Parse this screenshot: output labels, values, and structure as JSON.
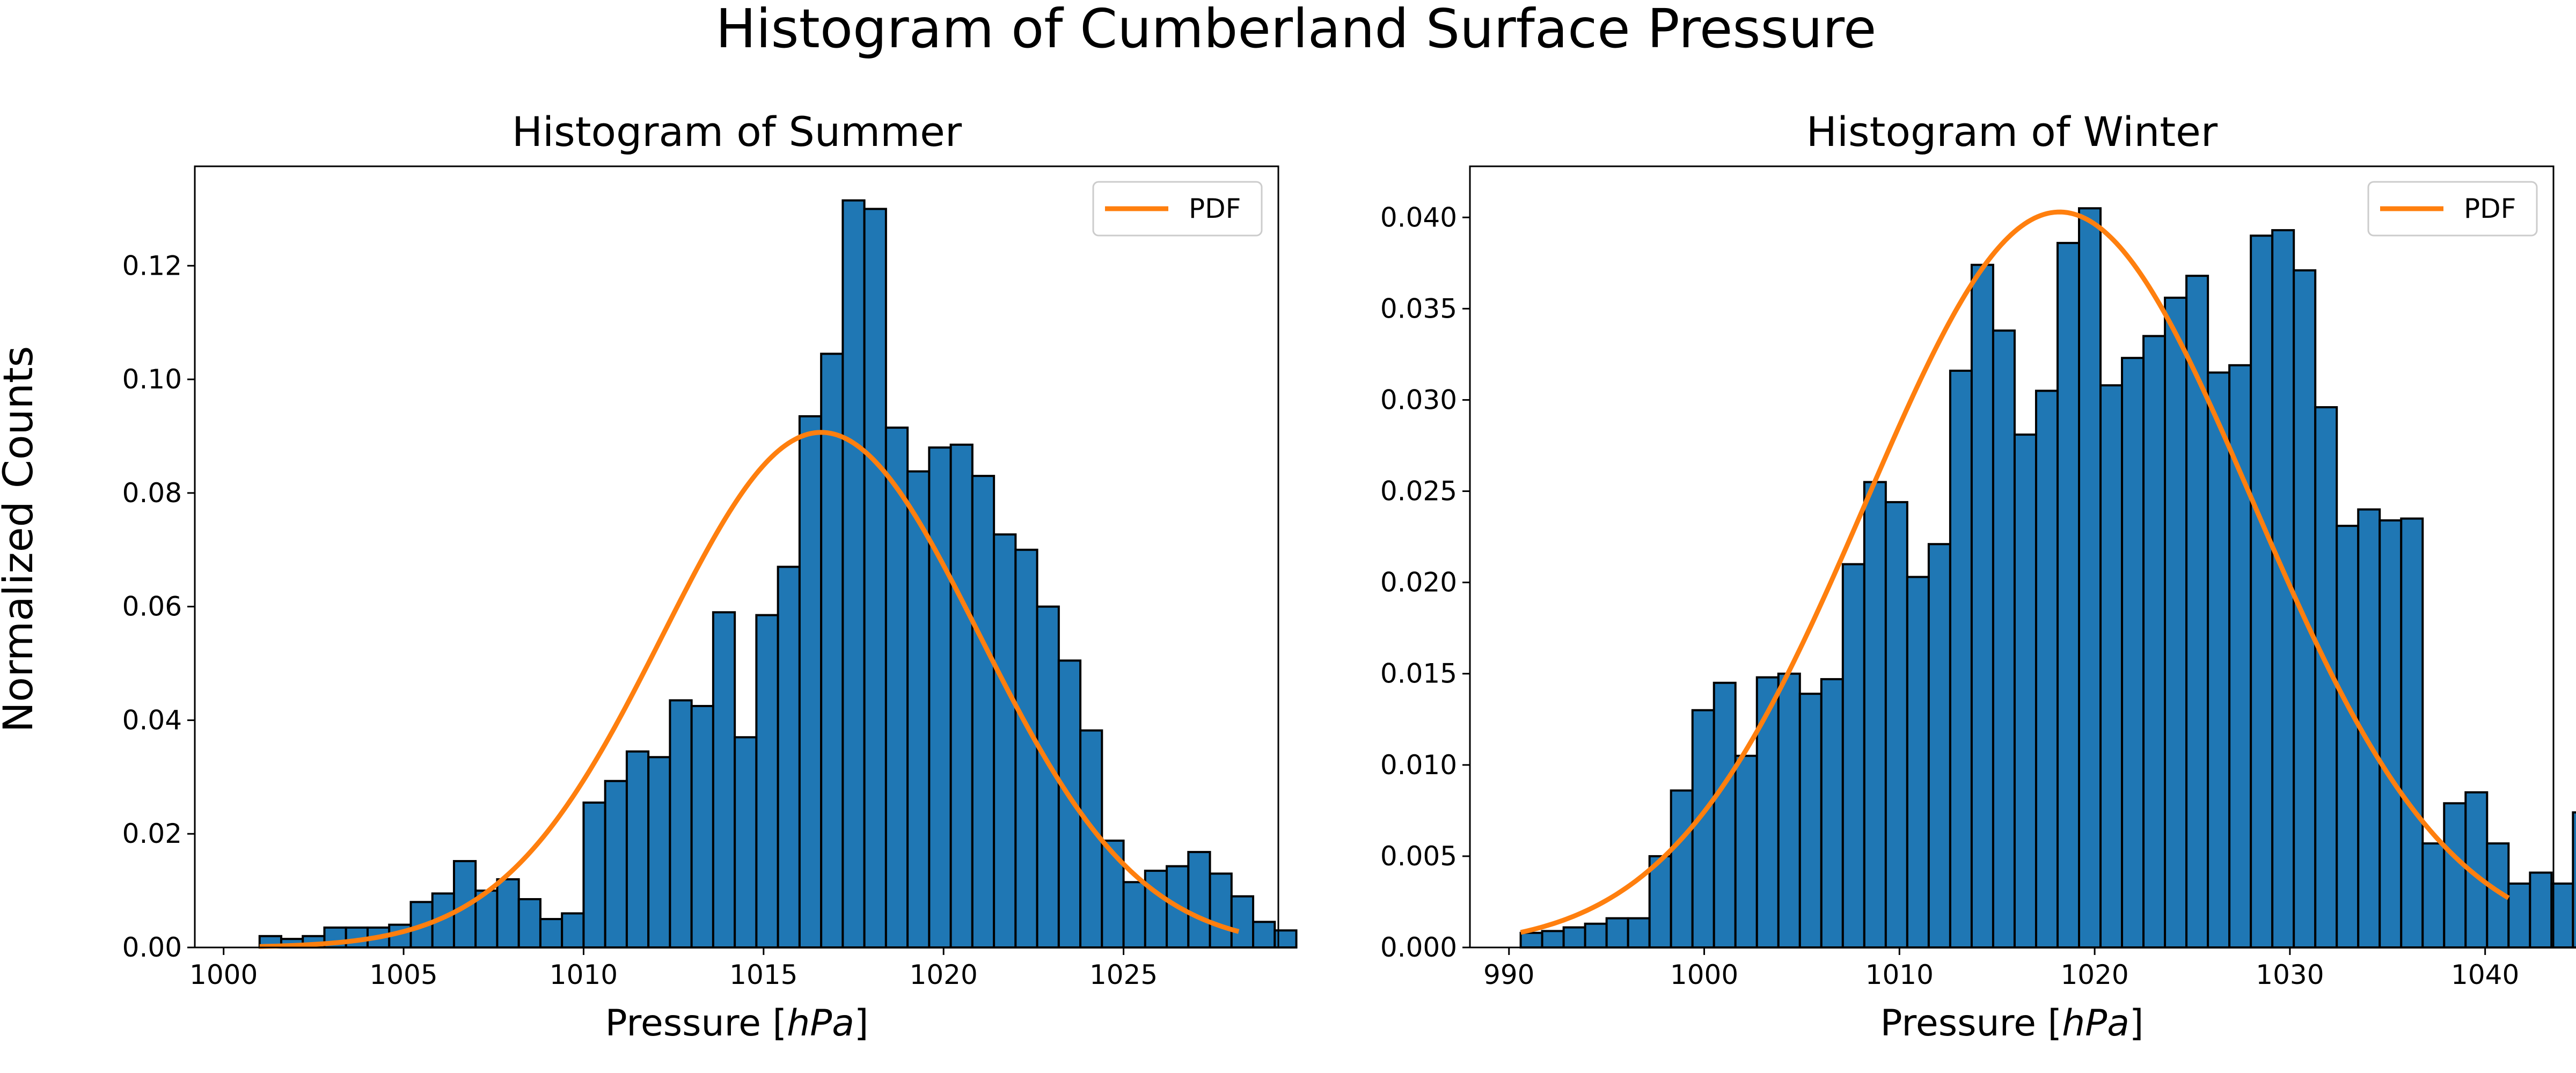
{
  "figure": {
    "suptitle": "Histogram of Cumberland Surface Pressure",
    "ylabel": "Normalized Counts",
    "colors": {
      "bar": "#1f77b4",
      "bar_edge": "#000000",
      "pdf": "#ff7f0e"
    }
  },
  "chart_data": [
    {
      "type": "bar",
      "title": "Histogram of Summer",
      "xlabel": "Pressure [hPa]",
      "xlabel_prefix": "Pressure [",
      "xlabel_unit": "hPa",
      "xlabel_suffix": "]",
      "ylabel": "Normalized Counts",
      "xlim": [
        999.2,
        1029.3
      ],
      "ylim": [
        0,
        0.1375
      ],
      "xticks": [
        1000,
        1005,
        1010,
        1015,
        1020,
        1025
      ],
      "yticks": [
        0.0,
        0.02,
        0.04,
        0.06,
        0.08,
        0.1,
        0.12
      ],
      "xtick_labels": [
        "1000",
        "1005",
        "1010",
        "1015",
        "1020",
        "1025"
      ],
      "ytick_labels": [
        "0.00",
        "0.02",
        "0.04",
        "0.06",
        "0.08",
        "0.10",
        "0.12"
      ],
      "bin_start": 1001.0,
      "bin_width": 0.6,
      "counts": [
        0.002,
        0.0015,
        0.002,
        0.0035,
        0.0035,
        0.0035,
        0.004,
        0.008,
        0.0095,
        0.0152,
        0.01,
        0.012,
        0.0085,
        0.005,
        0.006,
        0.0255,
        0.0293,
        0.0345,
        0.0335,
        0.0435,
        0.0425,
        0.059,
        0.037,
        0.0585,
        0.067,
        0.0935,
        0.1045,
        0.1315,
        0.13,
        0.0915,
        0.0838,
        0.088,
        0.0885,
        0.083,
        0.0727,
        0.07,
        0.06,
        0.0505,
        0.0382,
        0.0188,
        0.0115,
        0.0135,
        0.0143,
        0.0168,
        0.013,
        0.009,
        0.0045,
        0.003
      ],
      "pdf": {
        "mean": 1016.6,
        "sd": 4.4,
        "x_range": [
          1001.0,
          1028.2
        ]
      },
      "legend": [
        "PDF"
      ],
      "legend_position": "top-right",
      "grid": false
    },
    {
      "type": "bar",
      "title": "Histogram of Winter",
      "xlabel": "Pressure [hPa]",
      "xlabel_prefix": "Pressure [",
      "xlabel_unit": "hPa",
      "xlabel_suffix": "]",
      "ylabel": "Normalized Counts",
      "xlim": [
        988.0,
        1043.5
      ],
      "ylim": [
        0,
        0.0428
      ],
      "xticks": [
        990,
        1000,
        1010,
        1020,
        1030,
        1040
      ],
      "yticks": [
        0.0,
        0.005,
        0.01,
        0.015,
        0.02,
        0.025,
        0.03,
        0.035,
        0.04
      ],
      "xtick_labels": [
        "990",
        "1000",
        "1010",
        "1020",
        "1030",
        "1040"
      ],
      "ytick_labels": [
        "0.000",
        "0.005",
        "0.010",
        "0.015",
        "0.020",
        "0.025",
        "0.030",
        "0.035",
        "0.040"
      ],
      "bin_start": 990.6,
      "bin_width": 1.1,
      "counts": [
        0.0008,
        0.0009,
        0.0011,
        0.0013,
        0.0016,
        0.0016,
        0.005,
        0.0086,
        0.013,
        0.0145,
        0.0105,
        0.0148,
        0.015,
        0.0139,
        0.0147,
        0.021,
        0.0255,
        0.0244,
        0.0203,
        0.0221,
        0.0316,
        0.0374,
        0.0338,
        0.0281,
        0.0305,
        0.0386,
        0.0405,
        0.0308,
        0.0323,
        0.0335,
        0.0356,
        0.0368,
        0.0315,
        0.0319,
        0.039,
        0.0393,
        0.0371,
        0.0296,
        0.0231,
        0.024,
        0.0234,
        0.0235,
        0.0057,
        0.0079,
        0.0085,
        0.0057,
        0.0035,
        0.0041,
        0.0035,
        0.0074
      ],
      "pdf": {
        "mean": 1018.2,
        "sd": 9.9,
        "x_range": [
          990.6,
          1041.2
        ]
      },
      "legend": [
        "PDF"
      ],
      "legend_position": "top-right",
      "grid": false
    }
  ]
}
